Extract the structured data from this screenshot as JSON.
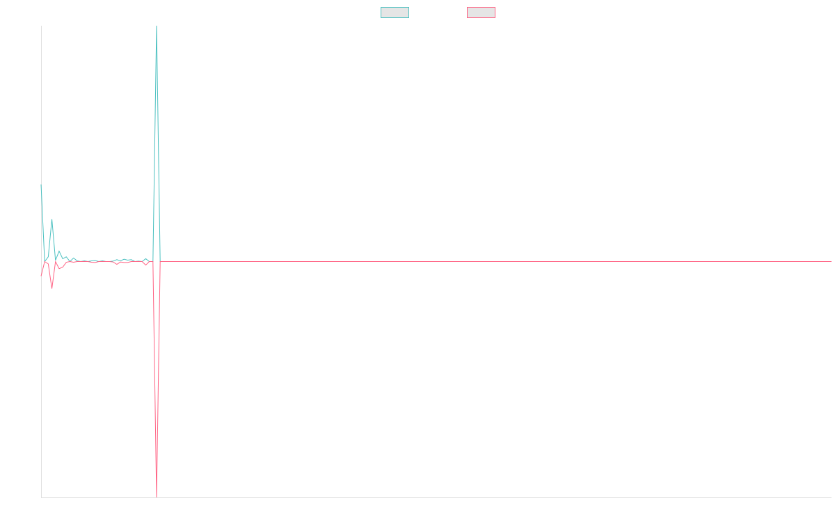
{
  "chart_data": {
    "type": "line",
    "x": [
      0,
      1,
      2,
      3,
      4,
      5,
      6,
      7,
      8,
      9,
      10,
      11,
      12,
      13,
      14,
      15,
      16,
      17,
      18,
      19,
      20,
      21,
      22,
      23,
      24,
      25,
      26,
      27,
      28,
      29,
      30,
      31,
      32,
      33,
      219
    ],
    "xlim": [
      0,
      219
    ],
    "ylim": [
      -1,
      1
    ],
    "legend": "top",
    "series": [
      {
        "color": "#4bc0c0",
        "values": [
          0.327,
          0,
          0.02,
          0.18,
          0.005,
          0.044,
          0.012,
          0.02,
          0,
          0.015,
          0.003,
          0,
          0.003,
          0,
          0.003,
          0.004,
          0,
          0.003,
          0,
          0,
          0.002,
          0.008,
          0.003,
          0.01,
          0.006,
          0.008,
          0,
          0.002,
          0,
          0.012,
          0,
          0,
          1,
          0,
          0
        ]
      },
      {
        "color": "#ff6384",
        "values": [
          -0.062,
          0,
          -0.01,
          -0.115,
          0,
          -0.03,
          -0.024,
          -0.003,
          0,
          -0.003,
          0,
          0,
          0,
          0,
          -0.003,
          -0.004,
          0,
          0,
          0,
          0,
          -0.002,
          -0.012,
          -0.002,
          -0.004,
          -0.004,
          0,
          0,
          0,
          0,
          -0.015,
          0,
          0,
          -1,
          0,
          0
        ]
      }
    ]
  }
}
